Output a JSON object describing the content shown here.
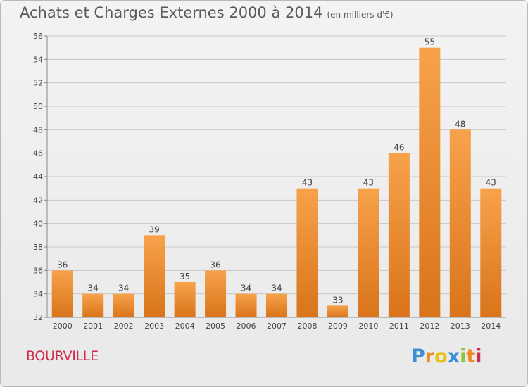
{
  "header": {
    "title": "Achats et Charges Externes 2000 à 2014",
    "unit": "(en milliers d'€)"
  },
  "location": "BOURVILLE",
  "logo": {
    "text": "Proxiti",
    "letters": [
      {
        "char": "P",
        "color": "#3a8fd8"
      },
      {
        "char": "r",
        "color": "#f08a1d"
      },
      {
        "char": "o",
        "color": "#e8c21a"
      },
      {
        "char": "x",
        "color": "#3a8fd8"
      },
      {
        "char": "i",
        "color": "#8cc63f"
      },
      {
        "char": "t",
        "color": "#f08a1d"
      },
      {
        "char": "i",
        "color": "#d02a4a"
      }
    ]
  },
  "colors": {
    "bar_light": "#f7a24b",
    "bar_dark": "#d9741a",
    "grid": "#c8c8c8",
    "axis_text": "#444444",
    "location": "#d02a4a"
  },
  "chart_data": {
    "type": "bar",
    "title": "Achats et Charges Externes 2000 à 2014",
    "xlabel": "",
    "ylabel": "",
    "categories": [
      "2000",
      "2001",
      "2002",
      "2003",
      "2004",
      "2005",
      "2006",
      "2007",
      "2008",
      "2009",
      "2010",
      "2011",
      "2012",
      "2013",
      "2014"
    ],
    "values": [
      36,
      34,
      34,
      39,
      35,
      36,
      34,
      34,
      43,
      33,
      43,
      46,
      55,
      48,
      43
    ],
    "ylim": [
      32,
      56
    ],
    "yticks": [
      32,
      34,
      36,
      38,
      40,
      42,
      44,
      46,
      48,
      50,
      52,
      54,
      56
    ],
    "grid": true,
    "legend": "none"
  }
}
